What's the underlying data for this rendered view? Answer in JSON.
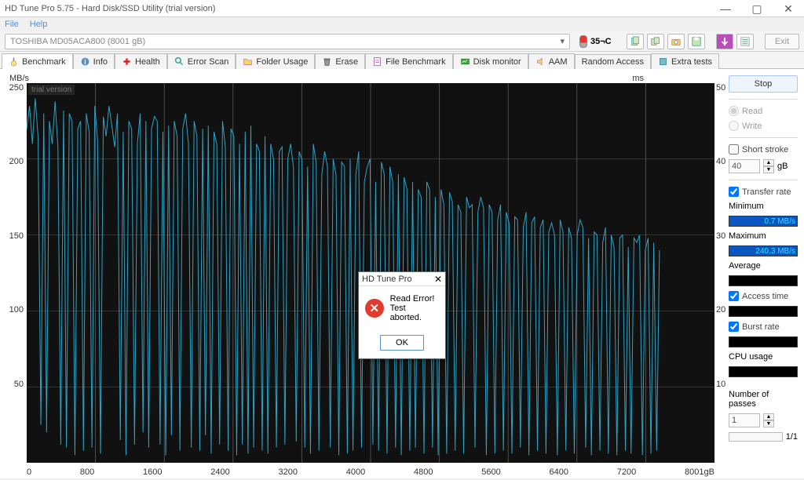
{
  "window": {
    "title": "HD Tune Pro 5.75 - Hard Disk/SSD Utility (trial version)"
  },
  "menu": {
    "file": "File",
    "help": "Help"
  },
  "drive": "TOSHIBA MD05ACA800 (8001 gB)",
  "temperature": "35¬C",
  "exit": "Exit",
  "tabs": [
    {
      "label": "Benchmark"
    },
    {
      "label": "Info"
    },
    {
      "label": "Health"
    },
    {
      "label": "Error Scan"
    },
    {
      "label": "Folder Usage"
    },
    {
      "label": "Erase"
    },
    {
      "label": "File Benchmark"
    },
    {
      "label": "Disk monitor"
    },
    {
      "label": "AAM"
    },
    {
      "label": "Random Access"
    },
    {
      "label": "Extra tests"
    }
  ],
  "chart": {
    "watermark": "trial version",
    "ylabel": "MB/s",
    "yrlabel": "ms",
    "ylim": [
      0,
      250
    ],
    "yticks": [
      250,
      200,
      150,
      100,
      50
    ],
    "yrticks": [
      50,
      40,
      30,
      20,
      10
    ],
    "xlim": [
      0,
      8001
    ],
    "xticks": [
      0,
      800,
      1600,
      2400,
      3200,
      4000,
      4800,
      5600,
      6400,
      7200
    ],
    "xunit": "8001gB",
    "series_color": "#2ca3c7",
    "background": "#111111",
    "grid_color": "#555555",
    "values": [
      220,
      235,
      210,
      240,
      215,
      25,
      230,
      20,
      225,
      210,
      238,
      208,
      12,
      232,
      10,
      230,
      225,
      5,
      220,
      225,
      8,
      230,
      218,
      10,
      235,
      212,
      6,
      228,
      215,
      235,
      222,
      208,
      230,
      15,
      218,
      5,
      225,
      220,
      12,
      210,
      230,
      20,
      225,
      10,
      220,
      228,
      225,
      12,
      218,
      5,
      222,
      18,
      225,
      215,
      8,
      220,
      230,
      210,
      10,
      225,
      215,
      8,
      220,
      18,
      222,
      6,
      218,
      210,
      12,
      225,
      208,
      8,
      220,
      215,
      5,
      210,
      12,
      218,
      6,
      222,
      10,
      210,
      205,
      8,
      215,
      6,
      210,
      200,
      10,
      205,
      208,
      12,
      200,
      210,
      195,
      14,
      205,
      200,
      10,
      195,
      6,
      210,
      198,
      8,
      190,
      205,
      195,
      10,
      200,
      190,
      5,
      198,
      195,
      6,
      200,
      8,
      190,
      205,
      10,
      185,
      195,
      200,
      12,
      185,
      8,
      198,
      190,
      6,
      195,
      185,
      10,
      190,
      5,
      188,
      180,
      8,
      185,
      10,
      180,
      175,
      6,
      185,
      180,
      10,
      175,
      5,
      180,
      170,
      6,
      178,
      172,
      8,
      170,
      165,
      6,
      175,
      168,
      170,
      10,
      165,
      175,
      168,
      5,
      170,
      165,
      6,
      160,
      170,
      8,
      165,
      158,
      6,
      162,
      160,
      10,
      155,
      165,
      5,
      158,
      162,
      8,
      155,
      160,
      6,
      152,
      158,
      150,
      5,
      160,
      152,
      8,
      155,
      148,
      6,
      150,
      160,
      155,
      10,
      148,
      5,
      152,
      150,
      8,
      145,
      155,
      6,
      150,
      142,
      5,
      148,
      150,
      8,
      142,
      6,
      148,
      145,
      150,
      5,
      140,
      148,
      6,
      145,
      8,
      140
    ]
  },
  "side": {
    "stop": "Stop",
    "read": "Read",
    "write": "Write",
    "short_stroke": "Short stroke",
    "short_val": "40",
    "short_unit": "gB",
    "transfer": "Transfer rate",
    "minimum": "Minimum",
    "min_val": "0.7 MB/s",
    "maximum": "Maximum",
    "max_val": "240.3 MB/s",
    "average": "Average",
    "avg_val": "",
    "access": "Access time",
    "access_val": "",
    "burst": "Burst rate",
    "burst_val": "",
    "cpu": "CPU usage",
    "cpu_val": "",
    "passes": "Number of passes",
    "passes_val": "1",
    "passes_count": "1/1"
  },
  "dialog": {
    "title": "HD Tune Pro",
    "line1": "Read Error!",
    "line2": "Test aborted.",
    "ok": "OK"
  }
}
